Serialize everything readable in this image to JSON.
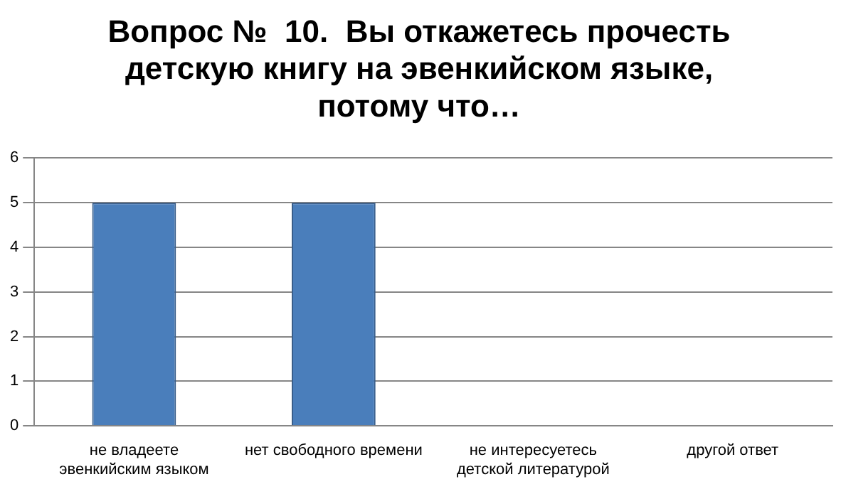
{
  "chart_data": {
    "type": "bar",
    "title": "Вопрос №  10.  Вы откажетесь прочесть детскую книгу на эвенкийском языке, потому что…",
    "categories": [
      "не владеете эвенкийским языком",
      "нет свободного времени",
      "не интересуетесь детской литературой",
      "другой ответ"
    ],
    "values": [
      5,
      5,
      0,
      0
    ],
    "color": "#4a7ebb",
    "ylim": [
      0,
      6
    ],
    "yticks": [
      0,
      1,
      2,
      3,
      4,
      5,
      6
    ],
    "grid": "y",
    "legend": false
  }
}
